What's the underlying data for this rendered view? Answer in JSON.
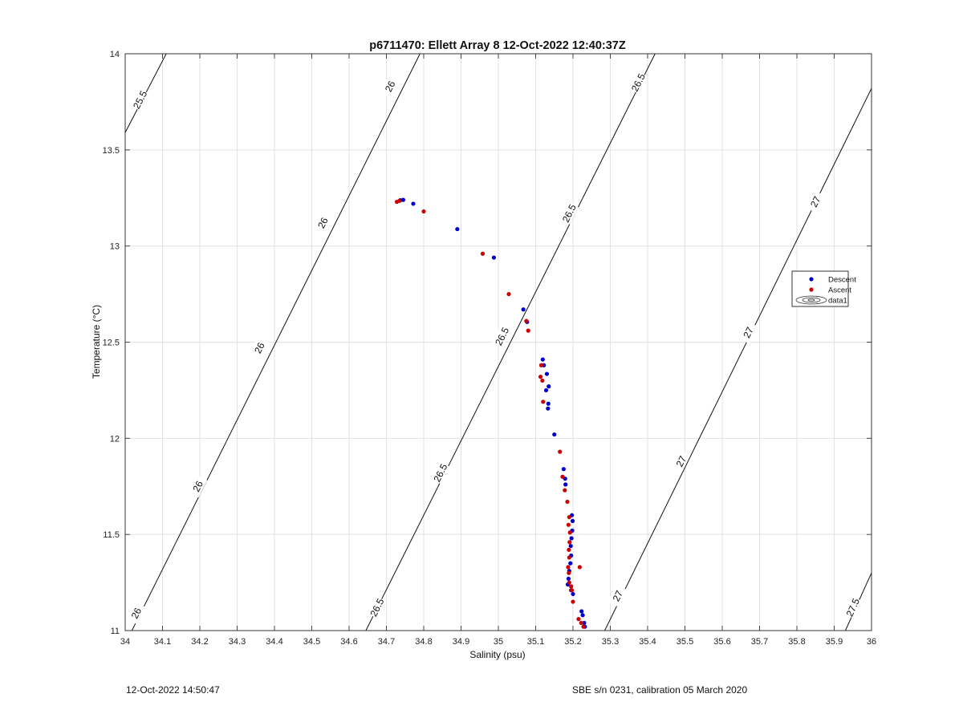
{
  "chart_data": {
    "type": "scatter",
    "title": "p6711470: Ellett Array 8 12-Oct-2022 12:40:37Z",
    "xlabel": "Salinity (psu)",
    "ylabel": "Temperature (°C)",
    "xlim": [
      34,
      36
    ],
    "ylim": [
      11,
      14
    ],
    "xticks": [
      "34",
      "34.1",
      "34.2",
      "34.3",
      "34.4",
      "34.5",
      "34.6",
      "34.7",
      "34.8",
      "34.9",
      "35",
      "35.1",
      "35.2",
      "35.3",
      "35.4",
      "35.5",
      "35.6",
      "35.7",
      "35.8",
      "35.9",
      "36"
    ],
    "yticks": [
      "11",
      "11.5",
      "12",
      "12.5",
      "13",
      "13.5",
      "14"
    ],
    "grid": true,
    "legend_position": "right",
    "legend": [
      "Descent",
      "Ascent",
      "data1"
    ],
    "contours": [
      {
        "level": "25.5",
        "points": [
          [
            34.0,
            13.59
          ],
          [
            34.11,
            14.0
          ]
        ],
        "labels": [
          [
            34.04,
            13.76
          ]
        ]
      },
      {
        "level": "26",
        "points": [
          [
            34.0,
            10.93
          ],
          [
            34.79,
            14.0
          ]
        ],
        "labels": [
          [
            34.03,
            11.09
          ],
          [
            34.195,
            11.75
          ],
          [
            34.36,
            12.47
          ],
          [
            34.53,
            13.12
          ],
          [
            34.71,
            13.83
          ]
        ]
      },
      {
        "level": "26.5",
        "points": [
          [
            34.645,
            11.0
          ],
          [
            35.42,
            14.0
          ]
        ],
        "labels": [
          [
            34.675,
            11.12
          ],
          [
            34.845,
            11.82
          ],
          [
            35.01,
            12.53
          ],
          [
            35.19,
            13.17
          ],
          [
            35.375,
            13.85
          ]
        ]
      },
      {
        "level": "27",
        "points": [
          [
            35.285,
            11.0
          ],
          [
            36.0,
            13.82
          ]
        ],
        "labels": [
          [
            35.32,
            11.18
          ],
          [
            35.49,
            11.88
          ],
          [
            35.67,
            12.55
          ],
          [
            35.85,
            13.23
          ]
        ]
      },
      {
        "level": "27.5",
        "points": [
          [
            35.93,
            11.0
          ],
          [
            36.0,
            11.3
          ]
        ],
        "labels": [
          [
            35.95,
            11.12
          ]
        ]
      }
    ],
    "series": [
      {
        "name": "Descent",
        "color": "#0000cc",
        "x": [
          34.737,
          34.745,
          34.772,
          34.89,
          34.988,
          35.067,
          35.077,
          35.119,
          35.122,
          35.13,
          35.135,
          35.128,
          35.134,
          35.133,
          35.15,
          35.175,
          35.179,
          35.18,
          35.197,
          35.199,
          35.198,
          35.196,
          35.194,
          35.195,
          35.193,
          35.19,
          35.188,
          35.186,
          35.195,
          35.2,
          35.223,
          35.226,
          35.23,
          35.232
        ],
        "y": [
          13.238,
          13.24,
          13.22,
          13.088,
          12.94,
          12.67,
          12.605,
          12.41,
          12.38,
          12.335,
          12.27,
          12.25,
          12.18,
          12.155,
          12.02,
          11.84,
          11.79,
          11.76,
          11.6,
          11.57,
          11.52,
          11.48,
          11.44,
          11.39,
          11.35,
          11.31,
          11.27,
          11.24,
          11.21,
          11.19,
          11.1,
          11.08,
          11.04,
          11.02
        ]
      },
      {
        "name": "Ascent",
        "color": "#cc0000",
        "x": [
          34.728,
          34.735,
          34.8,
          34.958,
          35.028,
          35.075,
          35.08,
          35.115,
          35.113,
          35.118,
          35.12,
          35.165,
          35.172,
          35.178,
          35.185,
          35.19,
          35.188,
          35.192,
          35.191,
          35.189,
          35.19,
          35.187,
          35.189,
          35.19,
          35.195,
          35.197,
          35.2,
          35.218,
          35.215,
          35.222,
          35.228
        ],
        "y": [
          13.23,
          13.235,
          13.18,
          12.96,
          12.75,
          12.61,
          12.56,
          12.38,
          12.32,
          12.3,
          12.19,
          11.93,
          11.8,
          11.73,
          11.67,
          11.59,
          11.55,
          11.51,
          11.46,
          11.42,
          11.38,
          11.33,
          11.3,
          11.25,
          11.23,
          11.21,
          11.15,
          11.33,
          11.06,
          11.04,
          11.02
        ]
      }
    ]
  },
  "footer": {
    "left": "12-Oct-2022 14:50:47",
    "right": "SBE s/n 0231, calibration 05 March 2020"
  }
}
